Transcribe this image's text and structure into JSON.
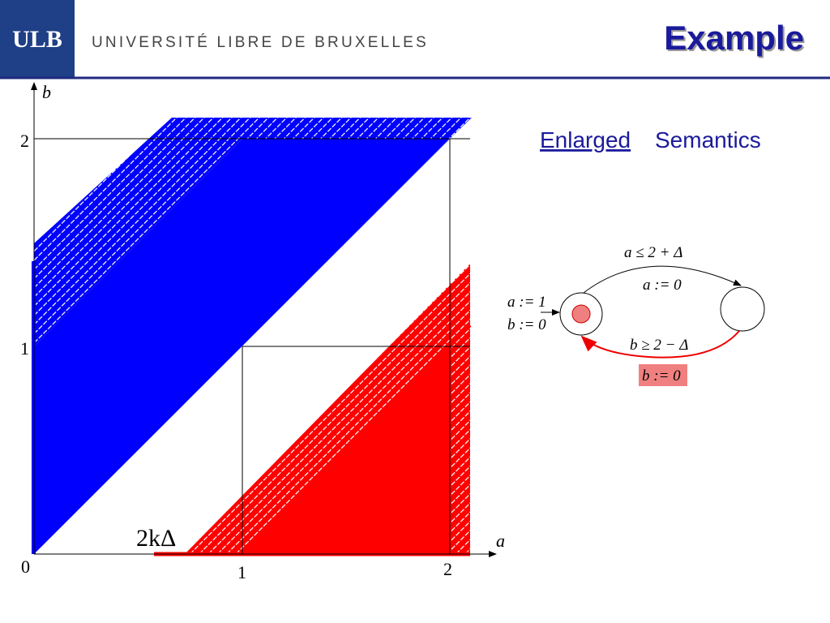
{
  "header": {
    "logo": "ULB",
    "university": "UNIVERSITÉ LIBRE DE BRUXELLES",
    "title": "Example"
  },
  "subtitle": {
    "underlined": "Enlarged",
    "rest": "Semantics"
  },
  "plot": {
    "x_axis_label": "a",
    "y_axis_label": "b",
    "origin_label": "0",
    "x_ticks": [
      "1",
      "2"
    ],
    "y_ticks": [
      "1",
      "2"
    ],
    "annotation": "2kΔ"
  },
  "automaton": {
    "init_reset_a": "a := 1",
    "init_reset_b": "b := 0",
    "top_guard": "a ≤ 2 + Δ",
    "top_reset": "a := 0",
    "bottom_guard": "b ≥ 2 − Δ",
    "bottom_reset": "b := 0"
  }
}
